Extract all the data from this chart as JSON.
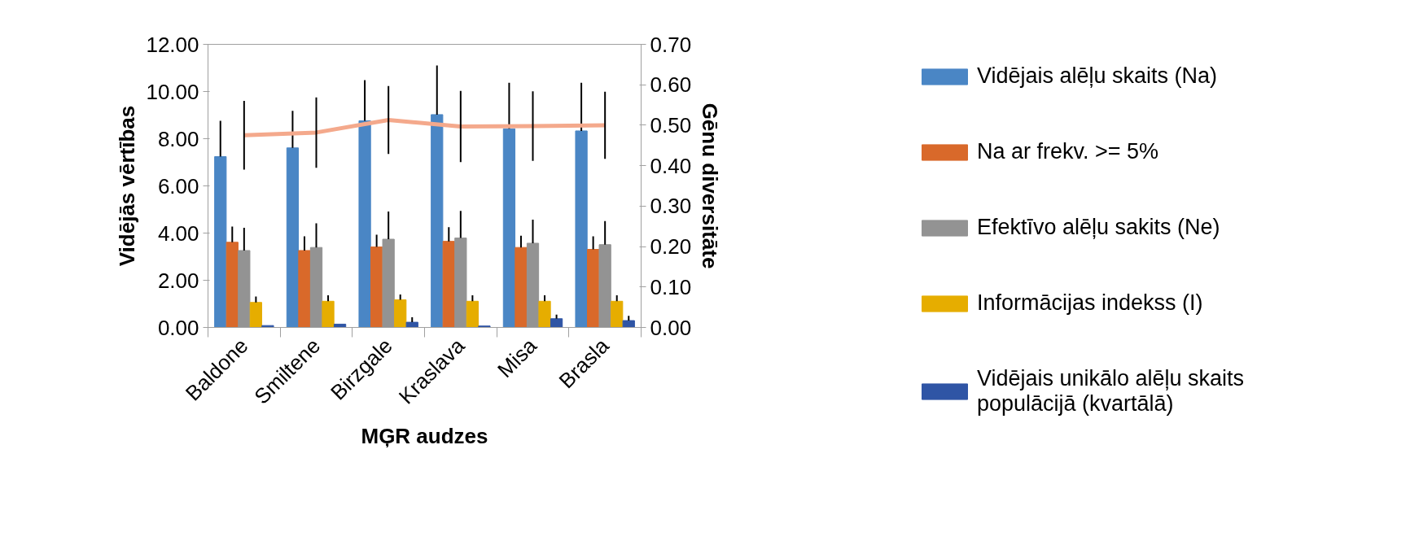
{
  "chart_data": {
    "type": "bar",
    "categories": [
      "Baldone",
      "Smiltene",
      "Birzgale",
      "Kraslava",
      "Misa",
      "Brasla"
    ],
    "xlabel": "MĢR audzes",
    "ylabel": "Vidējās vērtības",
    "y2label": "Gēnu diversitāte",
    "series": [
      {
        "name": "Vidējais alēļu skaits (Na)",
        "color": "#4a86c5",
        "values": [
          7.24,
          7.61,
          8.76,
          9.02,
          8.42,
          8.33
        ],
        "errors": [
          [
            7.24,
            8.76
          ],
          [
            7.61,
            9.18
          ],
          [
            8.76,
            10.48
          ],
          [
            9.02,
            11.1
          ],
          [
            8.42,
            10.37
          ],
          [
            8.33,
            10.37
          ]
        ]
      },
      {
        "name": "Na ar frekv. >= 5%",
        "color": "#d9692a",
        "values": [
          3.61,
          3.26,
          3.41,
          3.65,
          3.39,
          3.31
        ],
        "errors": [
          [
            3.61,
            4.28
          ],
          [
            3.26,
            3.86
          ],
          [
            3.41,
            3.93
          ],
          [
            3.65,
            4.25
          ],
          [
            3.39,
            3.89
          ],
          [
            3.31,
            3.86
          ]
        ]
      },
      {
        "name": "Efektīvo alēļu sakits (Ne)",
        "color": "#939393",
        "values": [
          3.26,
          3.39,
          3.74,
          3.79,
          3.57,
          3.51
        ],
        "errors": [
          [
            3.26,
            4.22
          ],
          [
            3.39,
            4.41
          ],
          [
            3.74,
            4.91
          ],
          [
            3.79,
            4.94
          ],
          [
            3.57,
            4.57
          ],
          [
            3.51,
            4.51
          ]
        ]
      },
      {
        "name": "Informācijas indekss (I)",
        "color": "#e6ad00",
        "values": [
          1.06,
          1.11,
          1.17,
          1.11,
          1.11,
          1.11
        ],
        "errors": [
          [
            1.06,
            1.31
          ],
          [
            1.11,
            1.36
          ],
          [
            1.17,
            1.4
          ],
          [
            1.11,
            1.36
          ],
          [
            1.11,
            1.36
          ],
          [
            1.11,
            1.36
          ]
        ]
      },
      {
        "name": "Vidējais unikālo alēļu skaits populācijā (kvartālā)",
        "color": "#2f55a5",
        "values": [
          0.08,
          0.14,
          0.22,
          0.06,
          0.37,
          0.29
        ],
        "errors": [
          null,
          null,
          [
            0.22,
            0.43
          ],
          null,
          [
            0.37,
            0.54
          ],
          [
            0.29,
            0.49
          ]
        ]
      },
      {
        "type": "line",
        "axis": "y2",
        "color": "#f4a98c",
        "values": [
          0.475,
          0.482,
          0.513,
          0.497,
          0.498,
          0.5
        ],
        "errors": [
          0.085,
          0.087,
          0.084,
          0.088,
          0.086,
          0.083
        ]
      }
    ],
    "ylim": [
      0,
      12
    ],
    "yticks": [
      {
        "value": 0,
        "label": "0.00"
      },
      {
        "value": 2,
        "label": "2.00"
      },
      {
        "value": 4,
        "label": "4.00"
      },
      {
        "value": 6,
        "label": "6.00"
      },
      {
        "value": 8,
        "label": "8.00"
      },
      {
        "value": 10,
        "label": "10.00"
      },
      {
        "value": 12,
        "label": "12.00"
      }
    ],
    "y2lim": [
      0,
      0.7
    ],
    "y2ticks": [
      {
        "value": 0,
        "label": "0.00"
      },
      {
        "value": 0.1,
        "label": "0.10"
      },
      {
        "value": 0.2,
        "label": "0.20"
      },
      {
        "value": 0.3,
        "label": "0.30"
      },
      {
        "value": 0.4,
        "label": "0.40"
      },
      {
        "value": 0.5,
        "label": "0.50"
      },
      {
        "value": 0.6,
        "label": "0.60"
      },
      {
        "value": 0.7,
        "label": "0.70"
      }
    ],
    "grid": false,
    "legend": "right"
  }
}
